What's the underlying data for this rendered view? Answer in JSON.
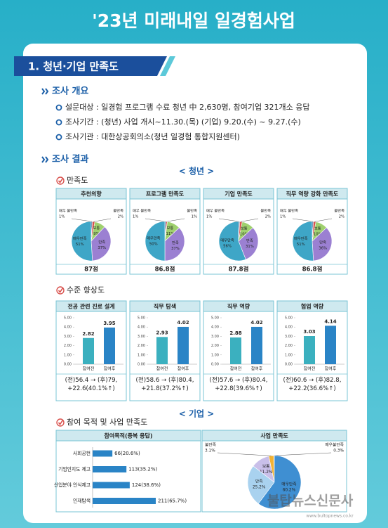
{
  "header": {
    "title": "'23년 미래내일 일경험사업"
  },
  "section": {
    "title": "1. 청년·기업 만족도"
  },
  "overview": {
    "title": "조사 개요",
    "items": [
      "설문대상 : 일경험 프로그램 수료 청년 中 2,630명, 참여기업 321개소 응답",
      "조사기간 : (청년) 사업 개시~11.30.(목)   (기업) 9.20.(수) ~ 9.27.(수)",
      "조사기관 : 대한상공회의소(청년 일경험 통합지원센터)"
    ]
  },
  "results": {
    "title": "조사 결과",
    "youth_label": "< 청년 >",
    "satisfaction_title": "만족도",
    "improvement_title": "수준 향상도",
    "company_label": "< 기업 >",
    "company_title": "참여 목적 및 사업 만족도"
  },
  "watermark": {
    "text": "불탑뉴스신문사",
    "url": "www.bultopnews.co.kr"
  },
  "chart_data": [
    {
      "type": "pie",
      "title": "추천의향",
      "categories": [
        "매우 불만족",
        "불만족",
        "보통",
        "만족",
        "매우만족"
      ],
      "values": [
        1,
        2,
        9,
        37,
        51
      ],
      "value_labels": [
        "1%",
        "2%",
        "9%",
        "37%",
        "51%"
      ],
      "colors": [
        "#1f4e8c",
        "#d9534f",
        "#9fd06e",
        "#9b80d2",
        "#3ea6c7"
      ],
      "score": "87점"
    },
    {
      "type": "pie",
      "title": "프로그램 만족도",
      "categories": [
        "매우 불만족",
        "불만족",
        "보통",
        "만족",
        "매우만족"
      ],
      "values": [
        1,
        1,
        11,
        37,
        50
      ],
      "value_labels": [
        "1%",
        "1%",
        "11%",
        "37%",
        "50%"
      ],
      "colors": [
        "#1f4e8c",
        "#d9534f",
        "#9fd06e",
        "#9b80d2",
        "#3ea6c7"
      ],
      "score": "86.8점"
    },
    {
      "type": "pie",
      "title": "기업 만족도",
      "categories": [
        "매우 불만족",
        "불만족",
        "보통",
        "만족",
        "매우만족"
      ],
      "values": [
        1,
        2,
        10,
        31,
        56
      ],
      "value_labels": [
        "1%",
        "2%",
        "10%",
        "31%",
        "56%"
      ],
      "colors": [
        "#1f4e8c",
        "#d9534f",
        "#9fd06e",
        "#9b80d2",
        "#3ea6c7"
      ],
      "score": "87.8점"
    },
    {
      "type": "pie",
      "title": "직무 역량 강화 만족도",
      "categories": [
        "매우 불만족",
        "불만족",
        "보통",
        "만족",
        "매우만족"
      ],
      "values": [
        1,
        2,
        10,
        36,
        51
      ],
      "value_labels": [
        "1%",
        "2%",
        "10%",
        "36%",
        "51%"
      ],
      "colors": [
        "#1f4e8c",
        "#d9534f",
        "#9fd06e",
        "#9b80d2",
        "#3ea6c7"
      ],
      "score": "86.8점"
    },
    {
      "type": "bar",
      "title": "전공 관련 진로 설계",
      "categories": [
        "참여전",
        "참여후"
      ],
      "values": [
        2.82,
        3.95
      ],
      "colors": [
        "#3bb0bf",
        "#2a84c6"
      ],
      "ylim": [
        0,
        5
      ],
      "yticks": [
        {
          "value": 0,
          "label": "0.00"
        },
        {
          "value": 1,
          "label": "1.00"
        },
        {
          "value": 2,
          "label": "2.00"
        },
        {
          "value": 3,
          "label": "3.00"
        },
        {
          "value": 4,
          "label": "4.00"
        },
        {
          "value": 5,
          "label": "5.00"
        }
      ],
      "note": "(전)56.4 → (후)79, +22.6(40.1%↑)"
    },
    {
      "type": "bar",
      "title": "직무 탐색",
      "categories": [
        "참여전",
        "참여후"
      ],
      "values": [
        2.93,
        4.02
      ],
      "colors": [
        "#3bb0bf",
        "#2a84c6"
      ],
      "ylim": [
        0,
        5
      ],
      "yticks": [
        {
          "value": 0,
          "label": "0.00"
        },
        {
          "value": 1,
          "label": "1.00"
        },
        {
          "value": 2,
          "label": "2.00"
        },
        {
          "value": 3,
          "label": "3.00"
        },
        {
          "value": 4,
          "label": "4.00"
        },
        {
          "value": 5,
          "label": "5.00"
        }
      ],
      "note": "(전)58.6 → (후)80.4, +21.8(37.2%↑)"
    },
    {
      "type": "bar",
      "title": "직무 역량",
      "categories": [
        "참여전",
        "참여후"
      ],
      "values": [
        2.88,
        4.02
      ],
      "colors": [
        "#3bb0bf",
        "#2a84c6"
      ],
      "ylim": [
        0,
        5
      ],
      "yticks": [
        {
          "value": 0,
          "label": "0.00"
        },
        {
          "value": 1,
          "label": "1.00"
        },
        {
          "value": 2,
          "label": "2.00"
        },
        {
          "value": 3,
          "label": "3.00"
        },
        {
          "value": 4,
          "label": "4.00"
        },
        {
          "value": 5,
          "label": "5.00"
        }
      ],
      "note": "(전)57.6 → (후)80.4, +22.8(39.6%↑)"
    },
    {
      "type": "bar",
      "title": "협업 역량",
      "categories": [
        "참여전",
        "참여후"
      ],
      "values": [
        3.03,
        4.14
      ],
      "colors": [
        "#3bb0bf",
        "#2a84c6"
      ],
      "ylim": [
        0,
        5
      ],
      "yticks": [
        {
          "value": 0,
          "label": "0.00"
        },
        {
          "value": 1,
          "label": "1.00"
        },
        {
          "value": 2,
          "label": "2.00"
        },
        {
          "value": 3,
          "label": "3.00"
        },
        {
          "value": 4,
          "label": "4.00"
        },
        {
          "value": 5,
          "label": "5.00"
        }
      ],
      "note": "(전)60.6 → (후)82.8, +22.2(36.6%↑)"
    },
    {
      "type": "hbar",
      "title": "참여목적(중복 응답)",
      "categories": [
        "사회공헌",
        "기업인지도 제고",
        "산업분야 인식제고",
        "인재탐색"
      ],
      "values": [
        66,
        113,
        124,
        211
      ],
      "value_labels": [
        "66(20.6%)",
        "113(35.2%)",
        "124(38.6%)",
        "211(65.7%)"
      ],
      "color": "#2a84c6"
    },
    {
      "type": "pie",
      "title": "사업 만족도",
      "counterclockwise": true,
      "categories": [
        "매우불만족",
        "불만족",
        "보통",
        "만족",
        "매우만족"
      ],
      "values": [
        0.3,
        3.1,
        11.2,
        25.2,
        60.2
      ],
      "value_labels": [
        "0.3%",
        "3.1%",
        "11.2%",
        "25.2%",
        "60.2%"
      ],
      "colors": [
        "#6b7280",
        "#f2b233",
        "#c9bfe9",
        "#a9d2ef",
        "#3f8fd2"
      ]
    }
  ]
}
